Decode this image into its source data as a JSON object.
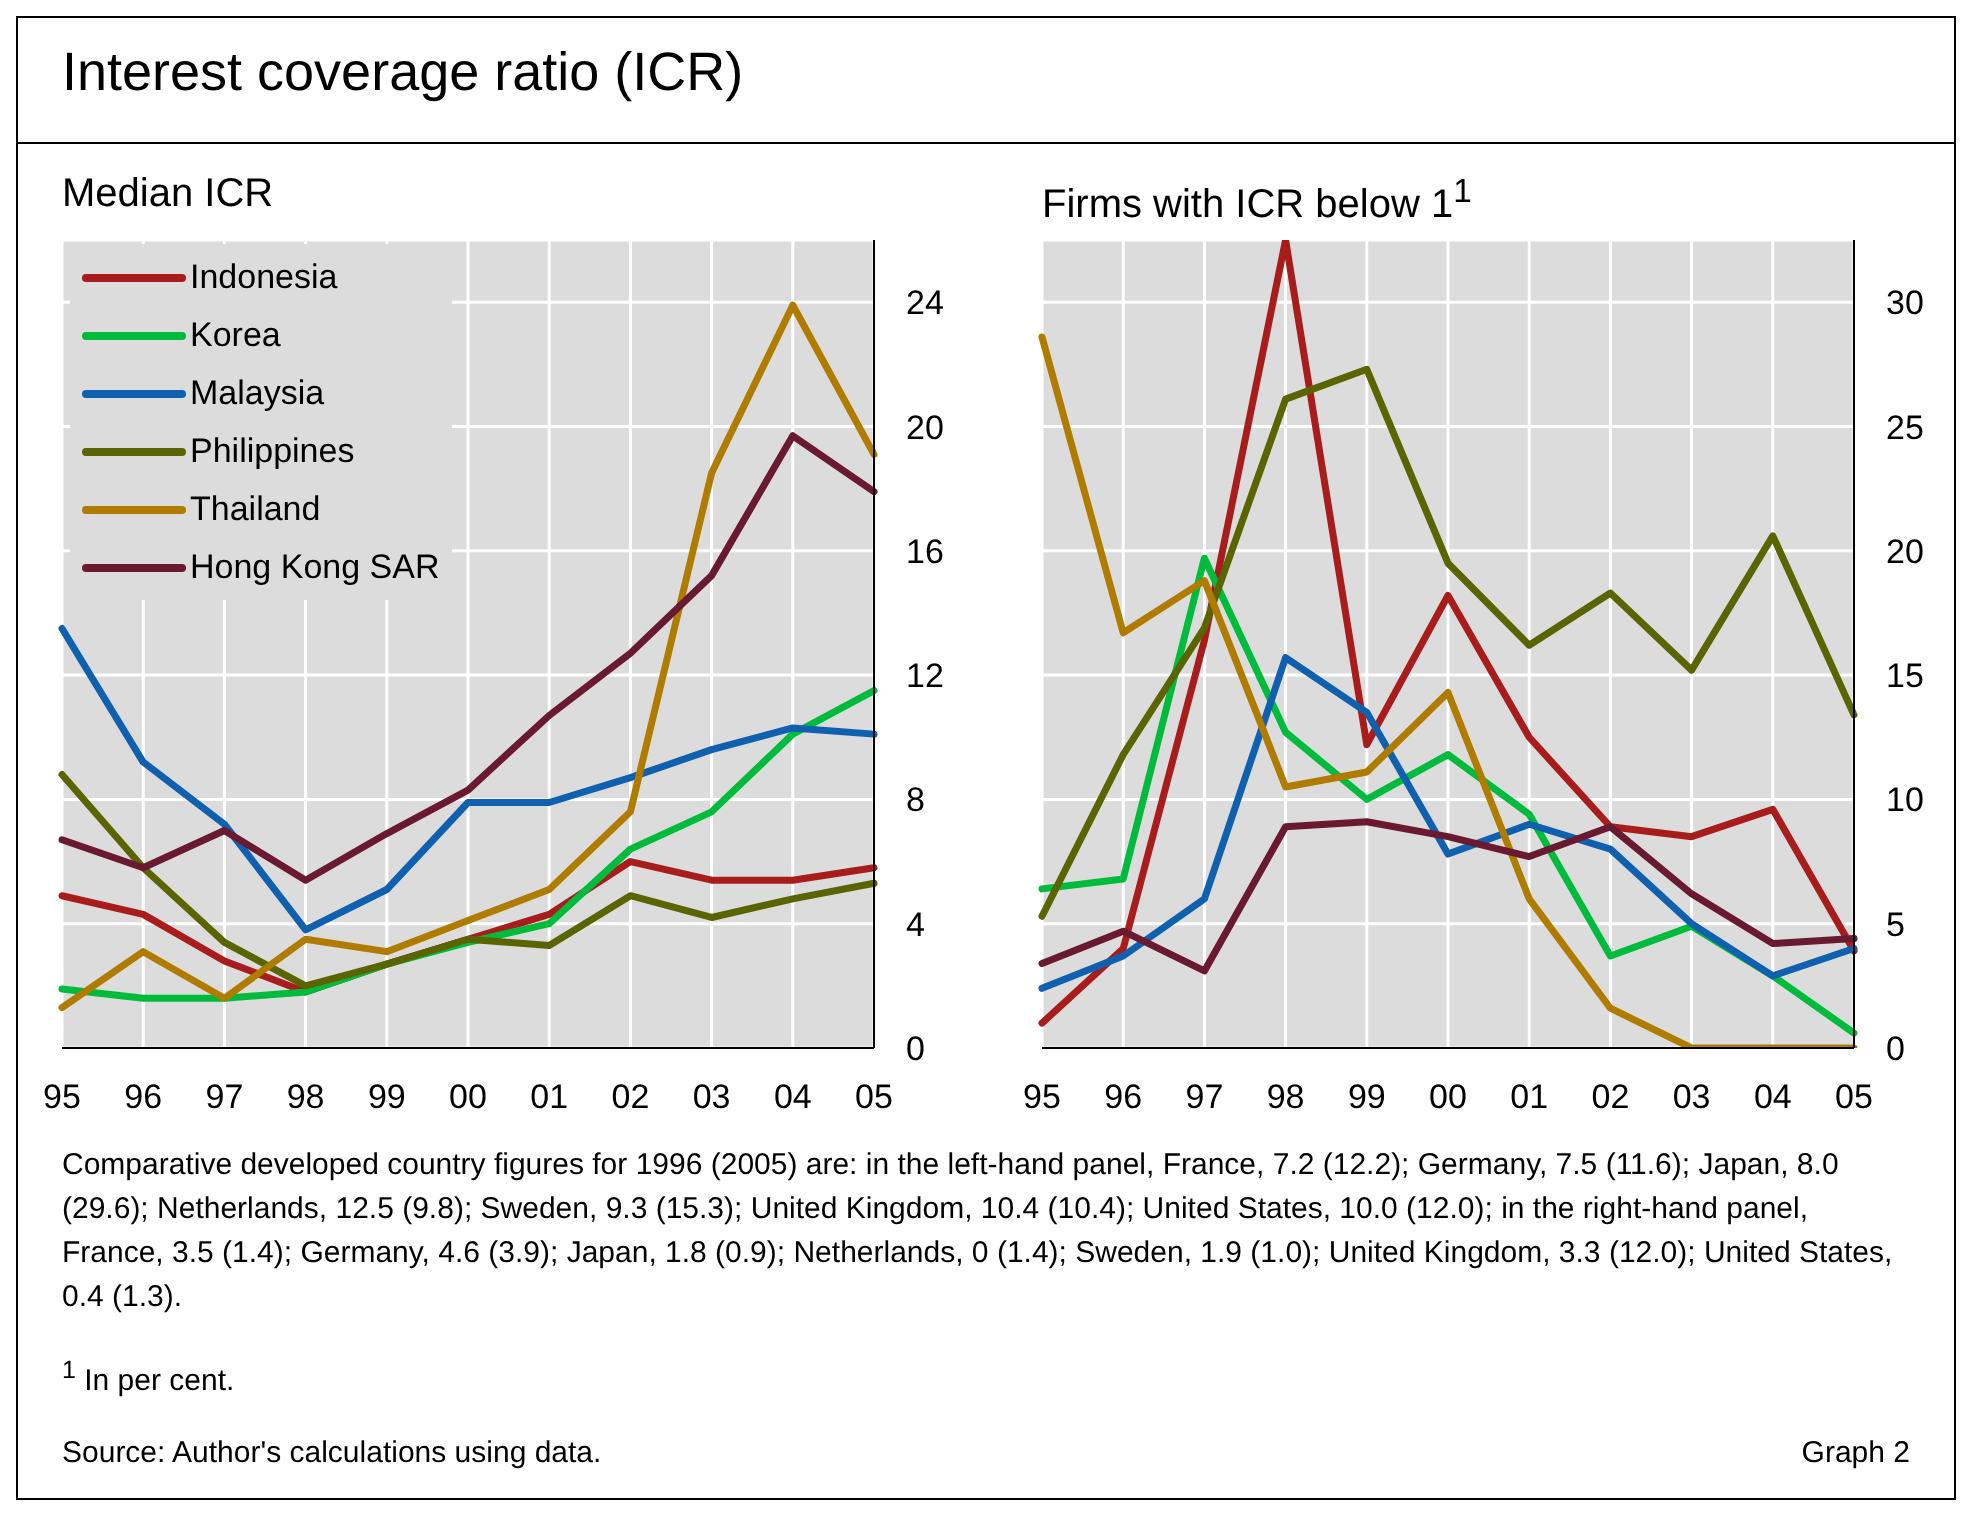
{
  "chart_data": [
    {
      "type": "line",
      "title": "Interest coverage ratio (ICR)",
      "subtitle": "Median ICR",
      "categories": [
        "95",
        "96",
        "97",
        "98",
        "99",
        "00",
        "01",
        "02",
        "03",
        "04",
        "05"
      ],
      "ylim": [
        0,
        26
      ],
      "yticks": [
        0,
        4,
        8,
        12,
        16,
        20,
        24
      ],
      "grid": true,
      "legend": "top left",
      "marker": "none",
      "line_style": "solid",
      "series": [
        {
          "name": "Indonesia",
          "color": "#a81c1c",
          "values": [
            4.9,
            4.3,
            2.8,
            1.8,
            2.7,
            3.5,
            4.3,
            6.0,
            5.4,
            5.4,
            5.8
          ]
        },
        {
          "name": "Korea",
          "color": "#00bb3c",
          "values": [
            1.9,
            1.6,
            1.6,
            1.8,
            2.7,
            3.4,
            4.0,
            6.4,
            7.6,
            10.1,
            11.5
          ]
        },
        {
          "name": "Malaysia",
          "color": "#1060b0",
          "values": [
            13.5,
            9.2,
            7.2,
            3.8,
            5.1,
            7.9,
            7.9,
            8.7,
            9.6,
            10.3,
            10.1
          ]
        },
        {
          "name": "Philippines",
          "color": "#5a6400",
          "values": [
            8.8,
            5.8,
            3.4,
            2.0,
            2.7,
            3.5,
            3.3,
            4.9,
            4.2,
            4.8,
            5.3
          ]
        },
        {
          "name": "Thailand",
          "color": "#b07c00",
          "values": [
            1.3,
            3.1,
            1.6,
            3.5,
            3.1,
            4.1,
            5.1,
            7.6,
            18.5,
            23.9,
            19.1
          ]
        },
        {
          "name": "Hong Kong SAR",
          "color": "#6a1a30",
          "values": [
            6.7,
            5.8,
            7.0,
            5.4,
            6.9,
            8.3,
            10.7,
            12.7,
            15.2,
            19.7,
            17.9
          ]
        }
      ],
      "annotations": [
        "Comparative developed country figures for 1996 (2005) are: in the left-hand panel, France, 7.2 (12.2); Germany, 7.5 (11.6); Japan, 8.0 (29.6); Netherlands, 12.5 (9.8); Sweden, 9.3 (15.3); United Kingdom, 10.4 (10.4); United States, 10.0 (12.0); in the right-hand panel, France, 3.5 (1.4); Germany, 4.6 (3.9); Japan, 1.8 (0.9); Netherlands, 0 (1.4); Sweden, 1.9 (1.0); United Kingdom, 3.3 (12.0); United States, 0.4 (1.3).",
        "$^{1}$  In per cent.",
        "Source: Author's calculations using data.",
        "Graph 2"
      ]
    },
    {
      "type": "line",
      "subtitle": "Firms with ICR below 1$^{1}$",
      "categories": [
        "95",
        "96",
        "97",
        "98",
        "99",
        "00",
        "01",
        "02",
        "03",
        "04",
        "05"
      ],
      "ylim": [
        0,
        32.5
      ],
      "yticks": [
        0,
        5,
        10,
        15,
        20,
        25,
        30
      ],
      "grid": true,
      "marker": "none",
      "line_style": "solid",
      "series": [
        {
          "color": "#a81c1c",
          "values": [
            1.0,
            4.0,
            16.4,
            32.5,
            12.2,
            18.2,
            12.5,
            8.9,
            8.5,
            9.6,
            3.9
          ]
        },
        {
          "color": "#00bb3c",
          "values": [
            6.4,
            6.8,
            19.7,
            12.7,
            10.0,
            11.8,
            9.4,
            3.7,
            4.9,
            2.9,
            0.6
          ]
        },
        {
          "color": "#1060b0",
          "values": [
            2.4,
            3.7,
            6.0,
            15.7,
            13.5,
            7.8,
            9.0,
            8.0,
            5.0,
            2.9,
            4.0
          ]
        },
        {
          "color": "#5a6400",
          "values": [
            5.3,
            11.8,
            16.9,
            26.1,
            27.3,
            19.5,
            16.2,
            18.3,
            15.2,
            20.6,
            13.4
          ]
        },
        {
          "color": "#b07c00",
          "values": [
            28.6,
            16.7,
            18.8,
            10.5,
            11.1,
            14.3,
            6.0,
            1.6,
            0,
            0,
            0
          ]
        },
        {
          "color": "#6a1a30",
          "values": [
            3.4,
            4.7,
            3.1,
            8.9,
            9.1,
            8.5,
            7.7,
            8.9,
            6.2,
            4.2,
            4.4
          ]
        }
      ]
    }
  ]
}
